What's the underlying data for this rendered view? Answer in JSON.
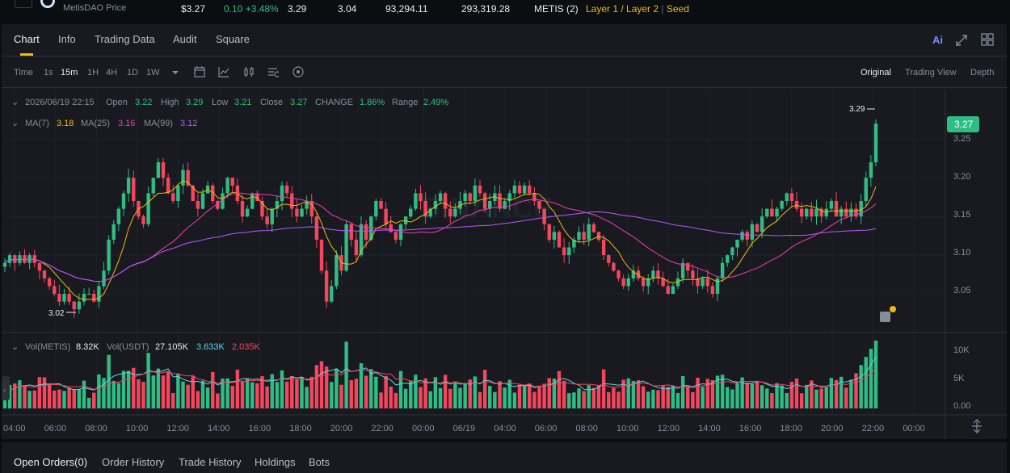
{
  "colors": {
    "up": "#2ebd85",
    "down": "#f6465d",
    "ma7": "#f0b90b",
    "ma25": "#eb40b5",
    "ma99": "#b659ff",
    "text": "#eaecef",
    "muted": "#848e9c",
    "yellow": "#f0b90b"
  },
  "ticker": {
    "name": "MetisDAO Price",
    "last": "$3.27",
    "change": "0.10 +3.48%",
    "high": "3.29",
    "low": "3.04",
    "vol": "93,294.11",
    "turnover": "293,319.28",
    "pair": "METIS (2)",
    "tags": "Layer 1 / Layer 2",
    "tag_extra": "Seed"
  },
  "tabs": [
    "Chart",
    "Info",
    "Trading Data",
    "Audit",
    "Square"
  ],
  "right_icons": [
    "ai-icon",
    "expand-icon",
    "grid-icon"
  ],
  "ai_label": "Ai",
  "intervals": [
    "Time",
    "1s",
    "15m",
    "1H",
    "4H",
    "1D",
    "1W"
  ],
  "active_interval": "15m",
  "views": [
    "Original",
    "Trading View",
    "Depth"
  ],
  "info": {
    "date": "2026/06/19 22:15",
    "open_label": "Open",
    "open": "3.22",
    "high_label": "High",
    "high": "3.29",
    "low_label": "Low",
    "low": "3.21",
    "close_label": "Close",
    "close": "3.27",
    "change_label": "CHANGE",
    "change": "1.86%",
    "range_label": "Range",
    "range": "2.49%"
  },
  "ma": {
    "ma7_label": "MA(7)",
    "ma7": "3.18",
    "ma25_label": "MA(25)",
    "ma25": "3.16",
    "ma99_label": "MA(99)",
    "ma99": "3.12"
  },
  "vol_info": {
    "label": "Vol(METIS)",
    "value": "8.32K",
    "usdt_label": "Vol(USDT)",
    "usdt": "27.105K",
    "ma1": "3.633K",
    "ma2": "2.035K"
  },
  "price_axis": [
    "3.25",
    "3.20",
    "3.15",
    "3.10",
    "3.05"
  ],
  "current_price": "3.27",
  "max_label": "3.29",
  "min_label": "3.02",
  "vol_axis": [
    "10K",
    "5K",
    "0.00"
  ],
  "time_axis": [
    "04:00",
    "06:00",
    "08:00",
    "10:00",
    "12:00",
    "14:00",
    "16:00",
    "18:00",
    "20:00",
    "22:00",
    "00:00",
    "06/19",
    "04:00",
    "06:00",
    "08:00",
    "10:00",
    "12:00",
    "14:00",
    "16:00",
    "18:00",
    "20:00",
    "22:00",
    "00:00"
  ],
  "watermark": "BINANCE",
  "bottom_tabs": [
    "Open Orders(0)",
    "Order History",
    "Trade History",
    "Holdings",
    "Bots"
  ],
  "chart_data": {
    "type": "candlestick",
    "ylim": [
      3.0,
      3.29
    ],
    "closes": [
      3.09,
      3.1,
      3.09,
      3.1,
      3.09,
      3.1,
      3.09,
      3.08,
      3.07,
      3.06,
      3.05,
      3.04,
      3.05,
      3.04,
      3.03,
      3.04,
      3.05,
      3.05,
      3.04,
      3.06,
      3.08,
      3.12,
      3.14,
      3.16,
      3.18,
      3.2,
      3.17,
      3.15,
      3.14,
      3.18,
      3.2,
      3.22,
      3.2,
      3.18,
      3.17,
      3.19,
      3.21,
      3.19,
      3.17,
      3.16,
      3.18,
      3.19,
      3.17,
      3.16,
      3.18,
      3.2,
      3.19,
      3.17,
      3.15,
      3.16,
      3.18,
      3.17,
      3.15,
      3.14,
      3.16,
      3.17,
      3.19,
      3.18,
      3.16,
      3.15,
      3.16,
      3.17,
      3.15,
      3.12,
      3.08,
      3.04,
      3.06,
      3.1,
      3.08,
      3.14,
      3.12,
      3.1,
      3.14,
      3.12,
      3.15,
      3.17,
      3.16,
      3.14,
      3.13,
      3.12,
      3.14,
      3.15,
      3.16,
      3.18,
      3.17,
      3.15,
      3.16,
      3.17,
      3.18,
      3.16,
      3.15,
      3.16,
      3.17,
      3.18,
      3.17,
      3.19,
      3.18,
      3.16,
      3.17,
      3.18,
      3.16,
      3.17,
      3.18,
      3.19,
      3.18,
      3.19,
      3.18,
      3.17,
      3.16,
      3.14,
      3.12,
      3.13,
      3.11,
      3.1,
      3.11,
      3.12,
      3.13,
      3.12,
      3.14,
      3.13,
      3.12,
      3.1,
      3.09,
      3.08,
      3.07,
      3.06,
      3.07,
      3.08,
      3.07,
      3.06,
      3.07,
      3.08,
      3.07,
      3.06,
      3.05,
      3.06,
      3.07,
      3.09,
      3.08,
      3.07,
      3.06,
      3.07,
      3.06,
      3.05,
      3.07,
      3.09,
      3.1,
      3.11,
      3.12,
      3.13,
      3.12,
      3.14,
      3.13,
      3.15,
      3.16,
      3.15,
      3.16,
      3.17,
      3.18,
      3.17,
      3.16,
      3.15,
      3.16,
      3.15,
      3.16,
      3.15,
      3.16,
      3.17,
      3.15,
      3.16,
      3.15,
      3.16,
      3.15,
      3.17,
      3.2,
      3.22,
      3.27
    ],
    "volume_max": 10000
  }
}
